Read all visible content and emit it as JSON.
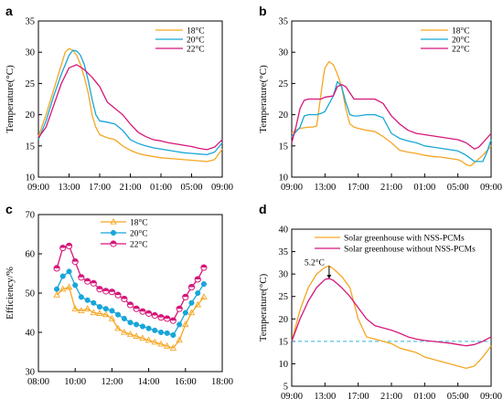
{
  "colors": {
    "s18": "#f5a623",
    "s20": "#17a6d8",
    "s22": "#d6167a",
    "dashed": "#2bb5d6",
    "axis": "#000000"
  },
  "chart_data": [
    {
      "id": "a",
      "type": "line",
      "panel_label": "a",
      "xlabel": "",
      "ylabel": "Temperature(°C)",
      "x_ticks": [
        "09:00",
        "13:00",
        "17:00",
        "21:00",
        "01:00",
        "05:00",
        "09:00"
      ],
      "ylim": [
        10,
        35
      ],
      "y_ticks": [
        10,
        15,
        20,
        25,
        30,
        35
      ],
      "legend_position": "top-right",
      "series": [
        {
          "name": "18°C",
          "color_key": "s18",
          "x": [
            0,
            1,
            2,
            3,
            3.5,
            4,
            4.5,
            5,
            5.5,
            6,
            6.5,
            7,
            7.5,
            8,
            9,
            10,
            11,
            12,
            13,
            14,
            15,
            16,
            17,
            18,
            19,
            20,
            21,
            22,
            23,
            24
          ],
          "y": [
            16.5,
            20,
            24,
            28,
            30,
            30.6,
            30.3,
            29.5,
            28,
            26,
            23.5,
            20,
            18,
            16.8,
            16.3,
            16,
            15,
            14.3,
            13.8,
            13.5,
            13.3,
            13.1,
            13,
            12.9,
            12.8,
            12.7,
            12.6,
            12.5,
            12.8,
            14.5
          ]
        },
        {
          "name": "20°C",
          "color_key": "s20",
          "x": [
            0,
            1,
            2,
            3,
            4,
            4.5,
            5,
            5.5,
            6,
            6.5,
            7,
            7.5,
            8,
            9,
            10,
            11,
            12,
            13,
            14,
            15,
            16,
            17,
            18,
            19,
            20,
            21,
            22,
            23,
            24
          ],
          "y": [
            16,
            19,
            23,
            26.5,
            29.5,
            30.3,
            30.2,
            29.5,
            28,
            25.5,
            22.5,
            20,
            19,
            18.8,
            18.5,
            17.5,
            16,
            15.4,
            15,
            14.7,
            14.5,
            14.3,
            14.1,
            13.9,
            13.8,
            13.7,
            13.6,
            14,
            15.5
          ]
        },
        {
          "name": "22°C",
          "color_key": "s22",
          "x": [
            0,
            1,
            2,
            3,
            4,
            5,
            6,
            7,
            8,
            9,
            10,
            11,
            12,
            13,
            14,
            15,
            16,
            17,
            18,
            19,
            20,
            21,
            22,
            23,
            24
          ],
          "y": [
            16.3,
            18,
            21.5,
            25,
            27.5,
            28,
            27.2,
            26,
            24.5,
            22,
            21,
            20,
            18.5,
            17.2,
            16.5,
            16,
            15.8,
            15.5,
            15.3,
            15.1,
            14.9,
            14.6,
            14.4,
            14.8,
            16
          ]
        }
      ]
    },
    {
      "id": "b",
      "type": "line",
      "panel_label": "b",
      "xlabel": "",
      "ylabel": "Temperature(°C)",
      "x_ticks": [
        "09:00",
        "13:00",
        "17:00",
        "21:00",
        "01:00",
        "05:00",
        "09:00"
      ],
      "ylim": [
        10,
        35
      ],
      "y_ticks": [
        10,
        15,
        20,
        25,
        30,
        35
      ],
      "legend_position": "top-right",
      "series": [
        {
          "name": "18°C",
          "color_key": "s18",
          "x": [
            0,
            0.5,
            1,
            2,
            2.5,
            3,
            3.8,
            4,
            4.5,
            5,
            5.5,
            6,
            6.5,
            7,
            7.5,
            8,
            9,
            10,
            11,
            12,
            13,
            14,
            15,
            16,
            17,
            18,
            19,
            20,
            20.5,
            21,
            21.5,
            22,
            23,
            24
          ],
          "y": [
            17,
            17.5,
            17.8,
            18,
            18,
            18.2,
            26,
            27.5,
            28.5,
            28,
            26.5,
            24.5,
            21,
            18.5,
            18,
            17.8,
            17.5,
            17.3,
            16.5,
            15.5,
            14.3,
            14,
            13.8,
            13.5,
            13.3,
            13.2,
            13,
            12.8,
            12.5,
            12,
            11.8,
            12.3,
            13.5,
            15
          ]
        },
        {
          "name": "20°C",
          "color_key": "s20",
          "x": [
            0,
            1,
            1.5,
            2,
            3,
            3.5,
            4,
            5,
            5.5,
            6,
            6.5,
            7,
            7.5,
            8,
            9,
            10,
            11,
            12,
            13,
            14,
            15,
            16,
            17,
            18,
            19,
            20,
            21,
            22,
            23,
            23.5,
            24
          ],
          "y": [
            16.5,
            18,
            19.8,
            20,
            20,
            20.2,
            20.5,
            23,
            25.3,
            24.5,
            22,
            20,
            19.8,
            19.8,
            20,
            20,
            19.5,
            17,
            16.2,
            15.8,
            15.5,
            15,
            14.8,
            14.6,
            14.4,
            14.2,
            13.5,
            12.5,
            12.5,
            14,
            16
          ]
        },
        {
          "name": "22°C",
          "color_key": "s22",
          "x": [
            0,
            0.5,
            1,
            1.5,
            2,
            3,
            3.5,
            4,
            5,
            5.5,
            6,
            6.5,
            7,
            7.5,
            8,
            9,
            10,
            11,
            12,
            13,
            14,
            15,
            16,
            17,
            18,
            19,
            20,
            21,
            22,
            22.5,
            23,
            24
          ],
          "y": [
            15.5,
            18,
            21,
            22.3,
            22.5,
            22.5,
            22.5,
            22.8,
            23,
            24.5,
            24.8,
            24.5,
            23.5,
            22.5,
            22.5,
            22.5,
            22.5,
            21.8,
            19.8,
            18.5,
            17.5,
            17,
            16.8,
            16.6,
            16.4,
            16.2,
            16,
            15.5,
            14.5,
            14.8,
            15.5,
            17
          ]
        }
      ]
    },
    {
      "id": "c",
      "type": "line",
      "panel_label": "c",
      "xlabel": "",
      "ylabel": "Efficiency/%",
      "x_ticks": [
        "08:00",
        "10:00",
        "12:00",
        "14:00",
        "16:00",
        "18:00"
      ],
      "xlim": [
        8,
        18
      ],
      "ylim": [
        30,
        70
      ],
      "y_ticks": [
        30,
        40,
        50,
        60,
        70
      ],
      "legend_position": "top-right",
      "series": [
        {
          "name": "18°C",
          "color_key": "s18",
          "x": [
            9,
            9.33,
            9.67,
            10,
            10.33,
            10.67,
            11,
            11.33,
            11.67,
            12,
            12.33,
            12.67,
            13,
            13.33,
            13.67,
            14,
            14.33,
            14.67,
            15,
            15.33,
            15.67,
            16,
            16.33,
            16.67,
            17
          ],
          "y": [
            49.5,
            51,
            51.5,
            46,
            45.5,
            46,
            45,
            44.8,
            44.5,
            43.5,
            41,
            40,
            39.5,
            39,
            38.5,
            38,
            37.5,
            37,
            36.5,
            36,
            38,
            42,
            45,
            47,
            49
          ]
        },
        {
          "name": "20°C",
          "color_key": "s20",
          "x": [
            9,
            9.33,
            9.67,
            10,
            10.33,
            10.67,
            11,
            11.33,
            11.67,
            12,
            12.33,
            12.67,
            13,
            13.33,
            13.67,
            14,
            14.33,
            14.67,
            15,
            15.33,
            15.67,
            16,
            16.33,
            16.67,
            17
          ],
          "y": [
            51,
            54.3,
            55.5,
            52,
            49,
            48.2,
            47.5,
            46.5,
            46,
            45.5,
            44.5,
            43.5,
            42.5,
            42,
            41.5,
            41,
            40.5,
            40,
            39.8,
            39.3,
            42,
            45,
            47.5,
            50,
            52.3
          ]
        },
        {
          "name": "22°C",
          "color_key": "s22",
          "x": [
            9,
            9.33,
            9.67,
            10,
            10.33,
            10.67,
            11,
            11.33,
            11.67,
            12,
            12.33,
            12.67,
            13,
            13.33,
            13.67,
            14,
            14.33,
            14.67,
            15,
            15.33,
            15.67,
            16,
            16.33,
            16.67,
            17
          ],
          "y": [
            56.3,
            61.5,
            62,
            58,
            54,
            53,
            52.5,
            51,
            50.5,
            50.3,
            49.5,
            48.5,
            47,
            46,
            45.3,
            44.8,
            44.3,
            43.8,
            43.5,
            43,
            46,
            49,
            51.5,
            53.5,
            56.5
          ]
        }
      ]
    },
    {
      "id": "d",
      "type": "line",
      "panel_label": "d",
      "xlabel": "",
      "ylabel": "Temperature(°C)",
      "x_ticks": [
        "09:00",
        "13:00",
        "17:00",
        "21:00",
        "01:00",
        "05:00",
        "09:00"
      ],
      "ylim": [
        5,
        40
      ],
      "y_ticks": [
        5,
        10,
        15,
        20,
        25,
        30,
        35,
        40
      ],
      "legend_position": "top-right",
      "annotation": {
        "text": "5.2°C",
        "x": 4.5
      },
      "reference_line_y": 15,
      "series": [
        {
          "name": "Solar greenhouse with NSS-PCMs",
          "color_key": "s18",
          "x": [
            0,
            1,
            2,
            3,
            4,
            4.5,
            5,
            6,
            7,
            8,
            9,
            10,
            11,
            12,
            13,
            14,
            15,
            16,
            17,
            18,
            19,
            20,
            21,
            22,
            23,
            24
          ],
          "y": [
            15,
            22,
            27,
            30,
            31.5,
            31.8,
            31.2,
            29.5,
            27,
            20,
            16,
            15.5,
            15,
            14.5,
            13.5,
            13,
            12.5,
            11.5,
            11,
            10.5,
            10,
            9.5,
            9,
            9.5,
            11.5,
            14
          ]
        },
        {
          "name": "Solar greenhouse without NSS-PCMs",
          "color_key": "s22",
          "x": [
            0,
            1,
            2,
            3,
            4,
            4.5,
            5,
            6,
            7,
            8,
            9,
            10,
            11,
            12,
            13,
            14,
            15,
            16,
            17,
            18,
            19,
            20,
            21,
            22,
            23,
            24
          ],
          "y": [
            15,
            20,
            24,
            27,
            28.8,
            29,
            28.6,
            27,
            25,
            22.5,
            20,
            18.5,
            18,
            17.5,
            16.8,
            16,
            15.5,
            15.2,
            15,
            14.8,
            14.6,
            14.3,
            14,
            14.3,
            15,
            16
          ]
        }
      ]
    }
  ]
}
